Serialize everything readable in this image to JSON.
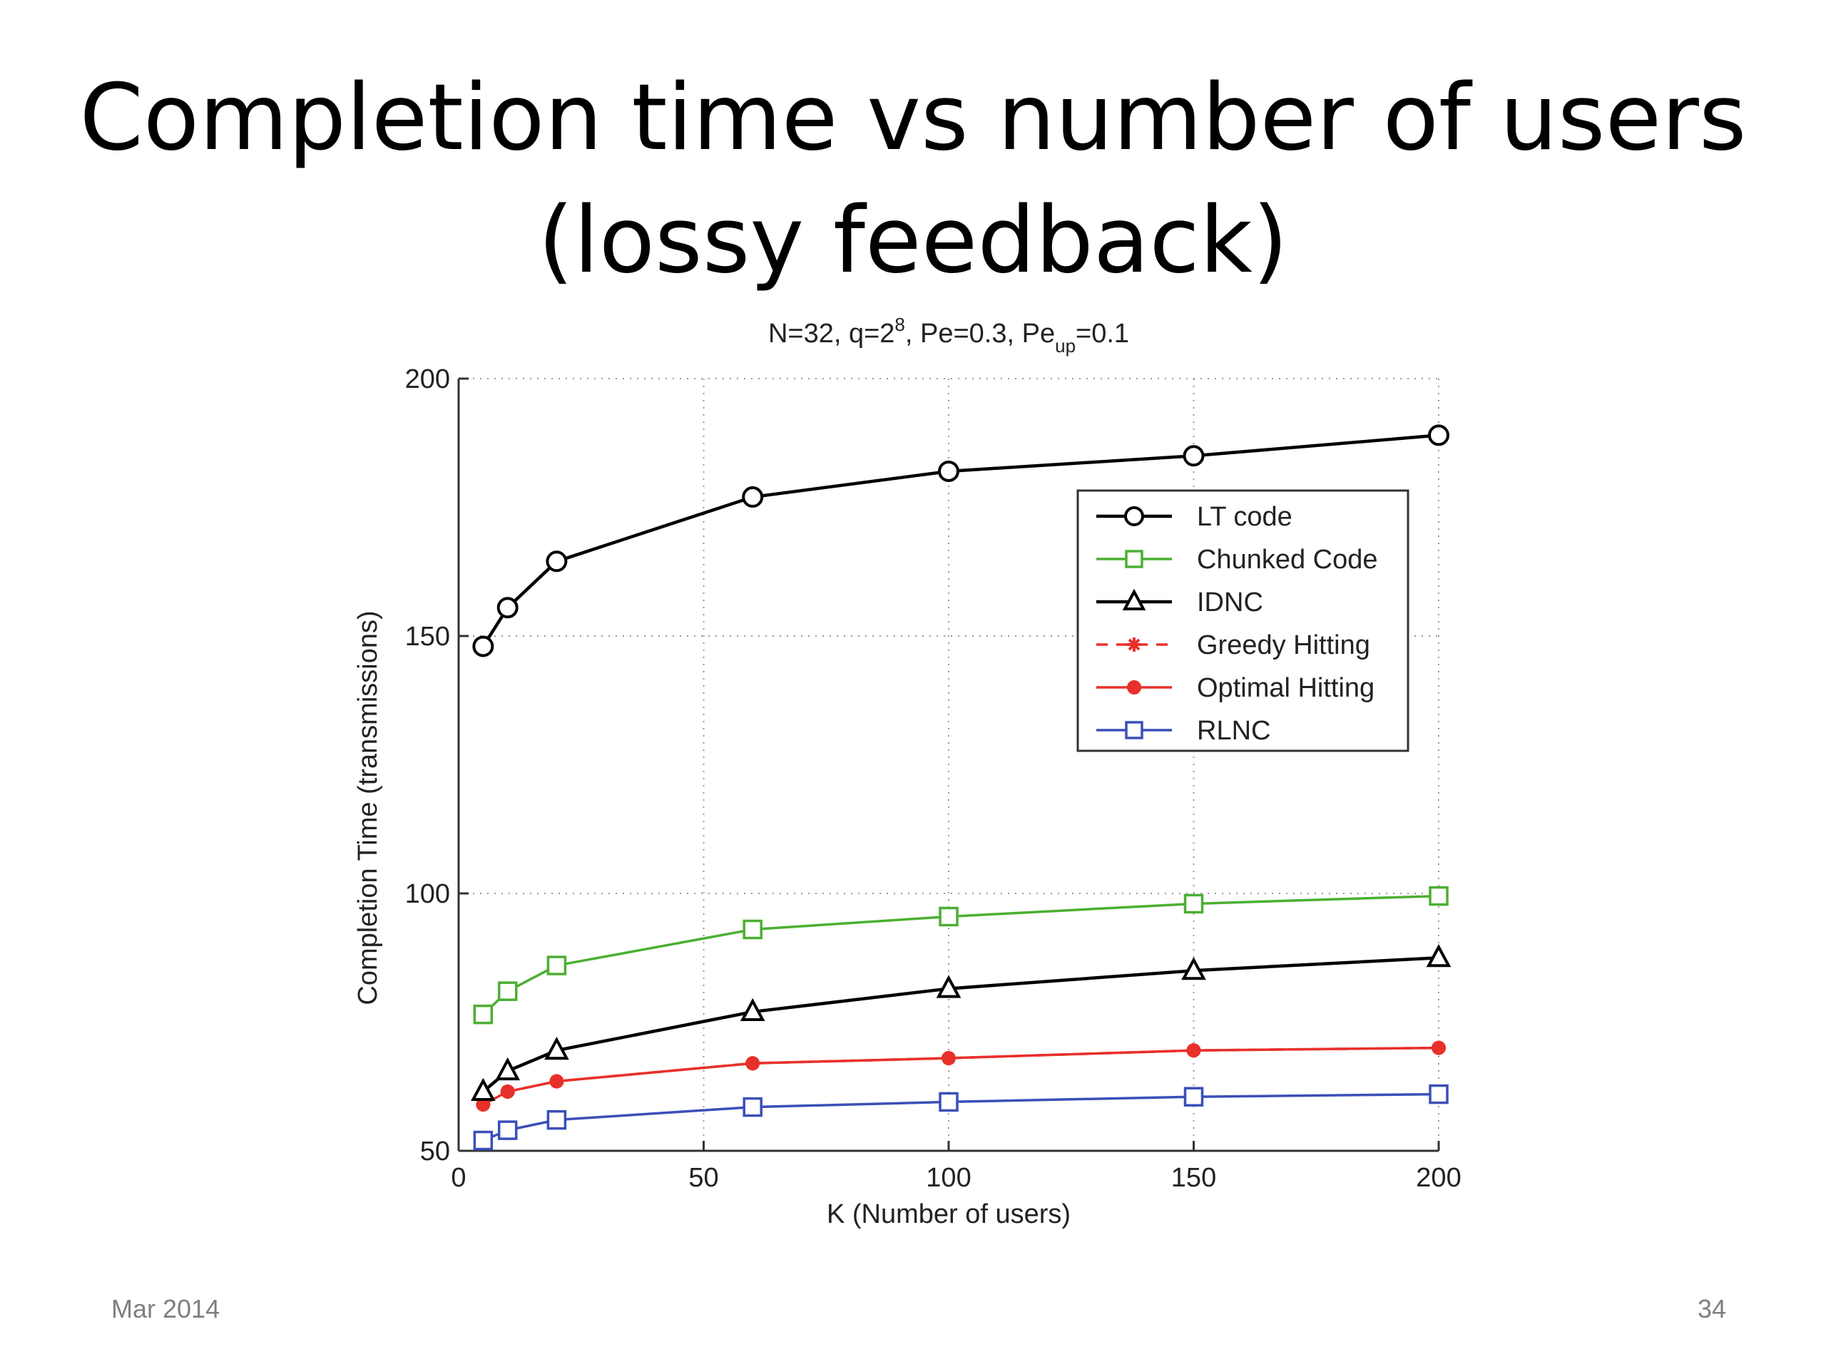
{
  "slide": {
    "title_line1": "Completion time vs number of users",
    "title_line2": "(lossy feedback)",
    "footer_date": "Mar 2014",
    "page_number": "34"
  },
  "chart_data": {
    "type": "line",
    "title_parts": {
      "prefix": "N=32, q=2",
      "q_exponent": "8",
      "middle": ", Pe=0.3, Pe",
      "pe_subscript": "up",
      "suffix": "=0.1"
    },
    "xlabel": "K (Number of users)",
    "ylabel": "Completion Time (transmissions)",
    "xlim": [
      0,
      200
    ],
    "ylim": [
      50,
      200
    ],
    "xticks": [
      0,
      50,
      100,
      150,
      200
    ],
    "yticks": [
      50,
      100,
      150,
      200
    ],
    "grid": true,
    "legend_position": "top-right",
    "series": [
      {
        "name": "LT code",
        "color": "#000000",
        "marker": "circle",
        "dash": "solid",
        "x": [
          5,
          10,
          20,
          60,
          100,
          150,
          200
        ],
        "y": [
          148,
          155.5,
          164.5,
          177,
          182,
          185,
          189
        ]
      },
      {
        "name": "Chunked Code",
        "color": "#4caf32",
        "marker": "square",
        "dash": "solid",
        "x": [
          5,
          10,
          20,
          60,
          100,
          150,
          200
        ],
        "y": [
          76.5,
          81,
          86,
          93,
          95.5,
          98,
          99.5
        ]
      },
      {
        "name": "IDNC",
        "color": "#000000",
        "marker": "triangle",
        "dash": "solid",
        "x": [
          5,
          10,
          20,
          60,
          100,
          150,
          200
        ],
        "y": [
          61.5,
          65.5,
          69.5,
          77,
          81.5,
          85,
          87.5
        ]
      },
      {
        "name": "Greedy Hitting",
        "color": "#e8302a",
        "marker": "star",
        "dash": "dashed",
        "x": [
          5,
          10,
          20,
          60,
          100,
          150,
          200
        ],
        "y": [
          59,
          61.5,
          63.5,
          67,
          68,
          69.5,
          70
        ]
      },
      {
        "name": "Optimal Hitting",
        "color": "#e8302a",
        "marker": "dot",
        "dash": "solid",
        "x": [
          5,
          10,
          20,
          60,
          100,
          150,
          200
        ],
        "y": [
          59,
          61.5,
          63.5,
          67,
          68,
          69.5,
          70
        ]
      },
      {
        "name": "RLNC",
        "color": "#3b4fb8",
        "marker": "square",
        "dash": "solid",
        "x": [
          5,
          10,
          20,
          60,
          100,
          150,
          200
        ],
        "y": [
          52,
          54,
          56,
          58.5,
          59.5,
          60.5,
          61
        ]
      }
    ]
  }
}
